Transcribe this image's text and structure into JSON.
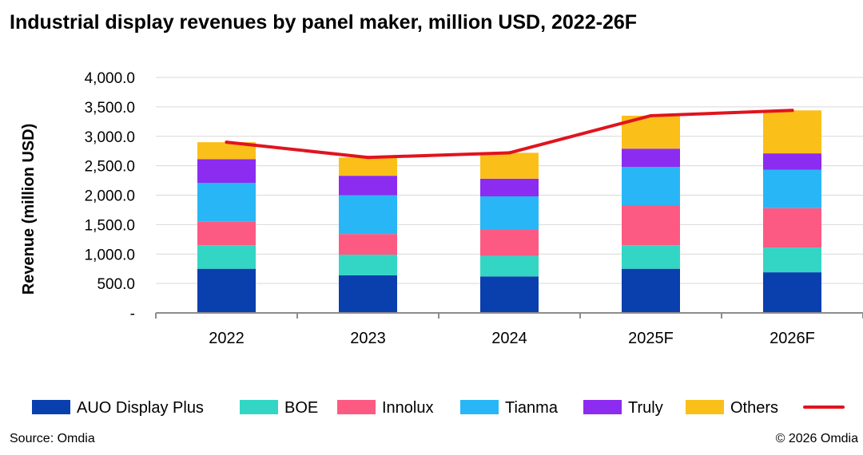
{
  "title": "Industrial display revenues by panel maker, million USD, 2022-26F",
  "source": "Source: Omdia",
  "copyright": "© 2026 Omdia",
  "chart_data": {
    "type": "bar",
    "stacked": true,
    "title": "Industrial display revenues by panel maker, million USD, 2022-26F",
    "xlabel": "",
    "ylabel": "Revenue (million USD)",
    "ylim": [
      0,
      4000
    ],
    "y_ticks": [
      "-",
      "500.0",
      "1,000.0",
      "1,500.0",
      "2,000.0",
      "2,500.0",
      "3,000.0",
      "3,500.0",
      "4,000.0"
    ],
    "y_tick_values": [
      0,
      500,
      1000,
      1500,
      2000,
      2500,
      3000,
      3500,
      4000
    ],
    "grid": true,
    "legend_position": "bottom",
    "categories": [
      "2022",
      "2023",
      "2024",
      "2025F",
      "2026F"
    ],
    "series": [
      {
        "name": "AUO Display Plus",
        "color": "#0a3fae",
        "values": [
          750,
          640,
          620,
          750,
          690
        ]
      },
      {
        "name": "BOE",
        "color": "#33d6c4",
        "values": [
          400,
          350,
          350,
          400,
          420
        ]
      },
      {
        "name": "Innolux",
        "color": "#fc5a82",
        "values": [
          400,
          350,
          440,
          680,
          670
        ]
      },
      {
        "name": "Tianma",
        "color": "#29b6f6",
        "values": [
          660,
          660,
          570,
          650,
          650
        ]
      },
      {
        "name": "Truly",
        "color": "#8b2cf0",
        "values": [
          400,
          330,
          300,
          310,
          280
        ]
      },
      {
        "name": "Others",
        "color": "#fbbf1a",
        "values": [
          290,
          310,
          440,
          560,
          730
        ]
      }
    ],
    "total_line": {
      "name": "",
      "color": "#e0141e",
      "values": [
        2900,
        2640,
        2720,
        3350,
        3440
      ]
    }
  }
}
